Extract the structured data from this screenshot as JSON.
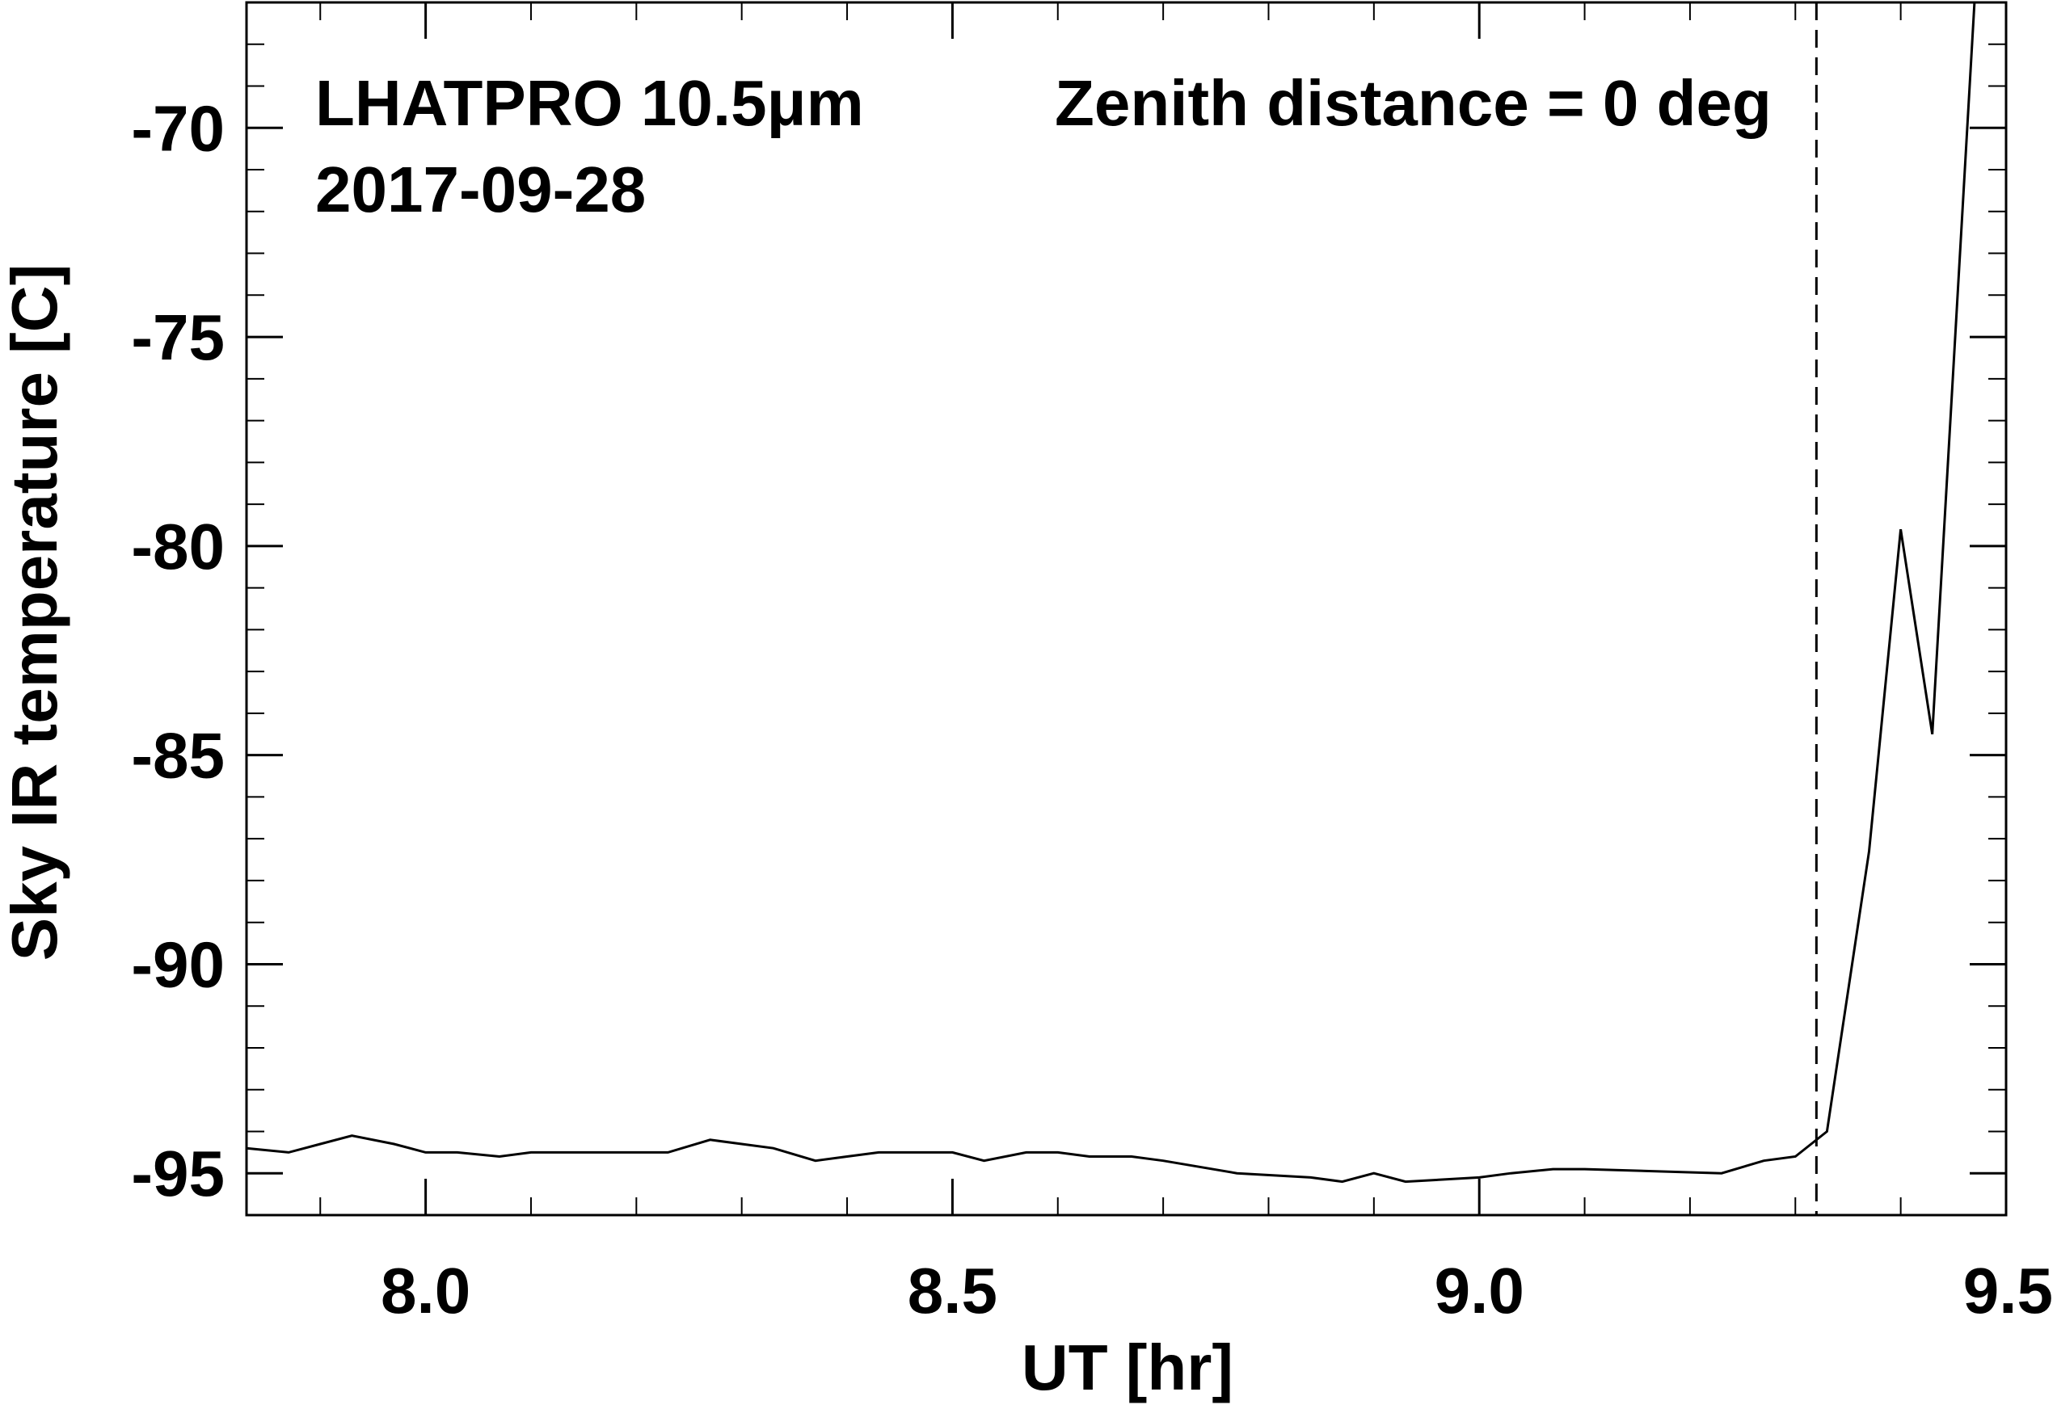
{
  "chart_data": {
    "type": "line",
    "title": "",
    "annotations": {
      "instrument": "LHATPRO 10.5μm",
      "zenith": "Zenith distance = 0 deg",
      "date": "2017-09-28"
    },
    "xlabel": "UT [hr]",
    "ylabel": "Sky IR temperature [C]",
    "xlim": [
      7.83,
      9.5
    ],
    "ylim": [
      -96,
      -67
    ],
    "x_ticks": [
      8.0,
      8.5,
      9.0,
      9.5
    ],
    "x_tick_labels": [
      "8.0",
      "8.5",
      "9.0",
      "9.5"
    ],
    "y_ticks": [
      -95,
      -90,
      -85,
      -80,
      -75,
      -70
    ],
    "y_tick_labels": [
      "-95",
      "-90",
      "-85",
      "-80",
      "-75",
      "-70"
    ],
    "x_minor_step": 0.1,
    "y_minor_step": 1,
    "grid": false,
    "vline": {
      "x": 9.32,
      "style": "dashed"
    },
    "series": [
      {
        "name": "",
        "color": "#000000",
        "x": [
          7.83,
          7.87,
          7.9,
          7.93,
          7.97,
          8.0,
          8.03,
          8.07,
          8.1,
          8.13,
          8.17,
          8.2,
          8.23,
          8.27,
          8.3,
          8.33,
          8.37,
          8.4,
          8.43,
          8.47,
          8.5,
          8.53,
          8.57,
          8.6,
          8.63,
          8.67,
          8.7,
          8.77,
          8.84,
          8.87,
          8.9,
          8.93,
          9.0,
          9.03,
          9.07,
          9.1,
          9.23,
          9.27,
          9.3,
          9.33,
          9.37,
          9.4,
          9.43,
          9.47,
          9.5
        ],
        "y": [
          -94.4,
          -94.5,
          -94.3,
          -94.1,
          -94.3,
          -94.5,
          -94.5,
          -94.6,
          -94.5,
          -94.5,
          -94.5,
          -94.5,
          -94.5,
          -94.2,
          -94.3,
          -94.4,
          -94.7,
          -94.6,
          -94.5,
          -94.5,
          -94.5,
          -94.7,
          -94.5,
          -94.5,
          -94.6,
          -94.6,
          -94.7,
          -95.0,
          -95.1,
          -95.2,
          -95.0,
          -95.2,
          -95.1,
          -95.0,
          -94.9,
          -94.9,
          -95.0,
          -94.7,
          -94.6,
          -94.0,
          -87.3,
          -79.6,
          -84.5,
          -67.0,
          -67.0
        ]
      }
    ]
  }
}
